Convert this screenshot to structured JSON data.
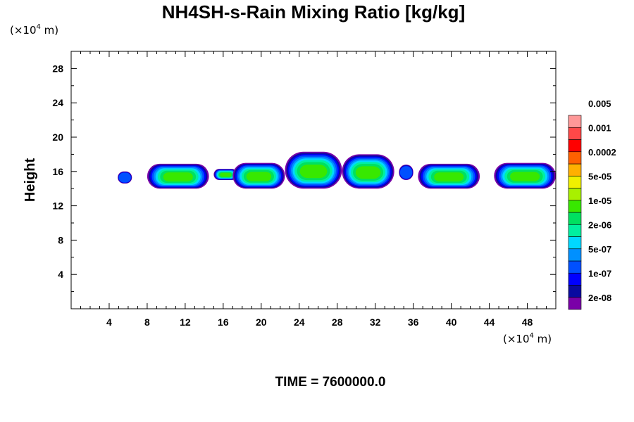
{
  "chart_data": {
    "type": "heatmap",
    "title": "NH4SH-s-Rain Mixing Ratio [kg/kg]",
    "ylabel": "Height",
    "y_unit": {
      "prefix": "(×10",
      "exp": "4",
      "suffix": " m)"
    },
    "x_unit": {
      "prefix": "(×10",
      "exp": "4",
      "suffix": " m)"
    },
    "xlim": [
      0,
      51
    ],
    "ylim": [
      0,
      30
    ],
    "x_ticks": [
      4,
      8,
      12,
      16,
      20,
      24,
      28,
      32,
      36,
      40,
      44,
      48
    ],
    "y_ticks": [
      4,
      8,
      12,
      16,
      20,
      24,
      28
    ],
    "time_label": "TIME = 7600000.0",
    "colorbar": {
      "colors": [
        "#7a00a8",
        "#0a0aa0",
        "#0000ff",
        "#0050ff",
        "#0090ff",
        "#00d8ff",
        "#00f0a0",
        "#00e060",
        "#38e800",
        "#a8f000",
        "#f0f000",
        "#ffb000",
        "#ff6000",
        "#ff0000",
        "#ff4848",
        "#ff9898"
      ],
      "labels": [
        "2e-08",
        "1e-07",
        "5e-07",
        "2e-06",
        "1e-05",
        "5e-05",
        "0.0002",
        "0.001",
        "0.005"
      ]
    },
    "cells": [
      {
        "x": [
          4.9,
          6.4
        ],
        "y": [
          14.6,
          16.0
        ]
      },
      {
        "x": [
          8.0,
          14.5
        ],
        "y": [
          14.0,
          16.9
        ]
      },
      {
        "x": [
          15.0,
          17.5
        ],
        "y": [
          15.0,
          16.3
        ]
      },
      {
        "x": [
          17.0,
          22.5
        ],
        "y": [
          14.0,
          17.0
        ]
      },
      {
        "x": [
          22.5,
          28.5
        ],
        "y": [
          14.0,
          18.3
        ]
      },
      {
        "x": [
          28.5,
          34.0
        ],
        "y": [
          14.0,
          18.0
        ]
      },
      {
        "x": [
          34.5,
          36.0
        ],
        "y": [
          15.0,
          16.8
        ]
      },
      {
        "x": [
          36.5,
          43.0
        ],
        "y": [
          14.0,
          16.9
        ]
      },
      {
        "x": [
          44.5,
          51.0
        ],
        "y": [
          14.0,
          17.0
        ]
      }
    ]
  }
}
